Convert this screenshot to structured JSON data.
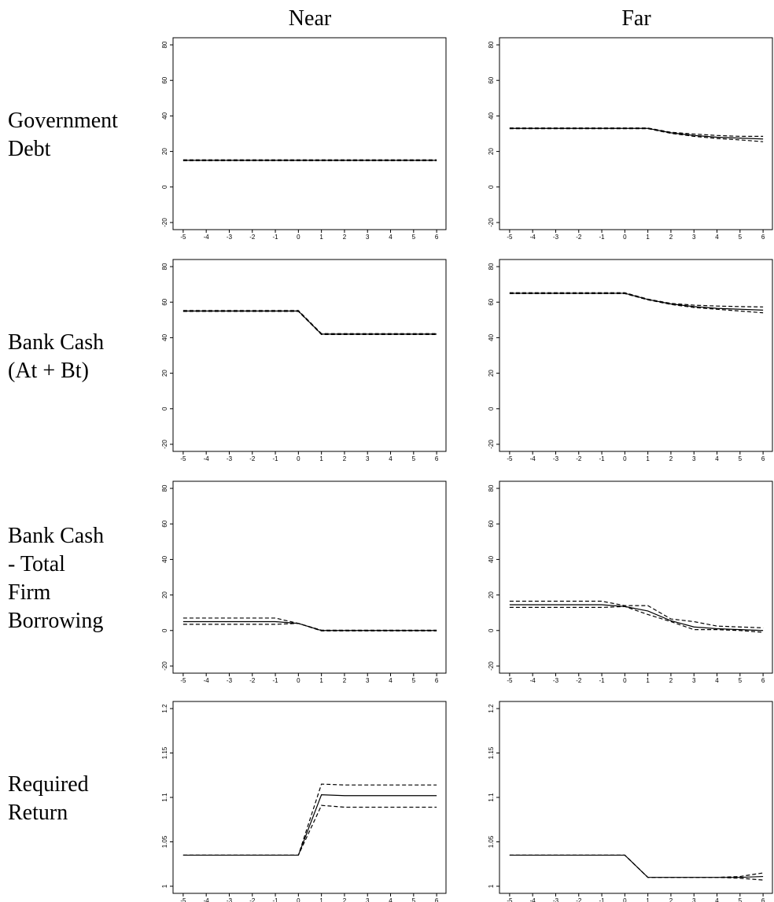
{
  "columns": [
    "Near",
    "Far"
  ],
  "rows": [
    [
      "Government",
      "Debt"
    ],
    [
      "Bank Cash",
      "(At + Bt)"
    ],
    [
      "Bank Cash",
      "- Total",
      "Firm",
      "Borrowing"
    ],
    [
      "Required",
      "Return"
    ]
  ],
  "chart_data": [
    {
      "type": "line",
      "x": [
        -5,
        -4,
        -3,
        -2,
        -1,
        0,
        1,
        2,
        3,
        4,
        5,
        6
      ],
      "xlim": [
        -5.44,
        6.44
      ],
      "xticks": [
        -5,
        -4,
        -3,
        -2,
        -1,
        0,
        1,
        2,
        3,
        4,
        5,
        6
      ],
      "ylim": [
        -24,
        84
      ],
      "yticks": [
        -20,
        0,
        20,
        40,
        60,
        80
      ],
      "series": [
        {
          "color": "#000000",
          "style": "solid",
          "values": [
            15,
            15,
            15,
            15,
            15,
            15,
            15,
            15,
            15,
            15,
            15,
            15
          ]
        },
        {
          "color": "#000000",
          "style": "dashed",
          "values": [
            15.3,
            15.3,
            15.3,
            15.3,
            15.3,
            15.3,
            15.3,
            15.3,
            15.3,
            15.3,
            15.3,
            15.3
          ]
        },
        {
          "color": "#000000",
          "style": "dashed",
          "values": [
            14.8,
            14.8,
            14.8,
            14.8,
            14.8,
            14.8,
            14.8,
            14.8,
            14.8,
            14.8,
            14.8,
            14.8
          ]
        }
      ]
    },
    {
      "type": "line",
      "x": [
        -5,
        -4,
        -3,
        -2,
        -1,
        0,
        1,
        2,
        3,
        4,
        5,
        6
      ],
      "xlim": [
        -5.44,
        6.44
      ],
      "xticks": [
        -5,
        -4,
        -3,
        -2,
        -1,
        0,
        1,
        2,
        3,
        4,
        5,
        6
      ],
      "ylim": [
        -24,
        84
      ],
      "yticks": [
        -20,
        0,
        20,
        40,
        60,
        80
      ],
      "series": [
        {
          "color": "#000000",
          "style": "solid",
          "values": [
            33,
            33,
            33,
            33,
            33,
            33,
            33,
            30.5,
            29,
            28,
            27.5,
            27
          ]
        },
        {
          "color": "#000000",
          "style": "dashed",
          "values": [
            33.2,
            33.2,
            33.2,
            33.2,
            33.2,
            33.2,
            33.2,
            30.8,
            29.8,
            29,
            28.5,
            28.5
          ]
        },
        {
          "color": "#000000",
          "style": "dashed",
          "values": [
            32.8,
            32.8,
            32.8,
            32.8,
            32.8,
            32.8,
            32.8,
            30.2,
            28.5,
            27.3,
            26.5,
            25.5
          ]
        }
      ]
    },
    {
      "type": "line",
      "x": [
        -5,
        -4,
        -3,
        -2,
        -1,
        0,
        1,
        2,
        3,
        4,
        5,
        6
      ],
      "xlim": [
        -5.44,
        6.44
      ],
      "xticks": [
        -5,
        -4,
        -3,
        -2,
        -1,
        0,
        1,
        2,
        3,
        4,
        5,
        6
      ],
      "ylim": [
        -24,
        84
      ],
      "yticks": [
        -20,
        0,
        20,
        40,
        60,
        80
      ],
      "series": [
        {
          "color": "#000000",
          "style": "solid",
          "values": [
            55,
            55,
            55,
            55,
            55,
            55,
            42,
            42,
            42,
            42,
            42,
            42
          ]
        },
        {
          "color": "#000000",
          "style": "dashed",
          "values": [
            55.3,
            55.3,
            55.3,
            55.3,
            55.3,
            55.3,
            42.3,
            42.3,
            42.3,
            42.3,
            42.3,
            42.3
          ]
        },
        {
          "color": "#000000",
          "style": "dashed",
          "values": [
            54.8,
            54.8,
            54.8,
            54.8,
            54.8,
            54.8,
            41.8,
            41.8,
            41.8,
            41.8,
            41.8,
            41.8
          ]
        }
      ]
    },
    {
      "type": "line",
      "x": [
        -5,
        -4,
        -3,
        -2,
        -1,
        0,
        1,
        2,
        3,
        4,
        5,
        6
      ],
      "xlim": [
        -5.44,
        6.44
      ],
      "xticks": [
        -5,
        -4,
        -3,
        -2,
        -1,
        0,
        1,
        2,
        3,
        4,
        5,
        6
      ],
      "ylim": [
        -24,
        84
      ],
      "yticks": [
        -20,
        0,
        20,
        40,
        60,
        80
      ],
      "series": [
        {
          "color": "#000000",
          "style": "solid",
          "values": [
            65,
            65,
            65,
            65,
            65,
            65,
            61.5,
            59,
            57.5,
            56.5,
            56,
            55.5
          ]
        },
        {
          "color": "#000000",
          "style": "dashed",
          "values": [
            65.3,
            65.3,
            65.3,
            65.3,
            65.3,
            65.3,
            61.7,
            59.3,
            58.3,
            57.8,
            57.5,
            57.3
          ]
        },
        {
          "color": "#000000",
          "style": "dashed",
          "values": [
            64.8,
            64.8,
            64.8,
            64.8,
            64.8,
            64.8,
            61.3,
            58.7,
            57,
            56,
            55,
            54
          ]
        }
      ]
    },
    {
      "type": "line",
      "x": [
        -5,
        -4,
        -3,
        -2,
        -1,
        0,
        1,
        2,
        3,
        4,
        5,
        6
      ],
      "xlim": [
        -5.44,
        6.44
      ],
      "xticks": [
        -5,
        -4,
        -3,
        -2,
        -1,
        0,
        1,
        2,
        3,
        4,
        5,
        6
      ],
      "ylim": [
        -24,
        84
      ],
      "yticks": [
        -20,
        0,
        20,
        40,
        60,
        80
      ],
      "series": [
        {
          "color": "#000000",
          "style": "solid",
          "values": [
            5,
            5,
            5,
            5,
            5,
            4,
            0,
            0,
            0,
            0,
            0,
            0
          ]
        },
        {
          "color": "#000000",
          "style": "dashed",
          "values": [
            7,
            7,
            7,
            7,
            7,
            4,
            0.2,
            0.2,
            0.2,
            0.2,
            0.2,
            0.2
          ]
        },
        {
          "color": "#000000",
          "style": "dashed",
          "values": [
            3.5,
            3.5,
            3.5,
            3.5,
            3.5,
            4,
            -0.2,
            -0.2,
            -0.2,
            -0.2,
            -0.2,
            -0.2
          ]
        }
      ]
    },
    {
      "type": "line",
      "x": [
        -5,
        -4,
        -3,
        -2,
        -1,
        0,
        1,
        2,
        3,
        4,
        5,
        6
      ],
      "xlim": [
        -5.44,
        6.44
      ],
      "xticks": [
        -5,
        -4,
        -3,
        -2,
        -1,
        0,
        1,
        2,
        3,
        4,
        5,
        6
      ],
      "ylim": [
        -24,
        84
      ],
      "yticks": [
        -20,
        0,
        20,
        40,
        60,
        80
      ],
      "series": [
        {
          "color": "#000000",
          "style": "solid",
          "values": [
            14.5,
            14.5,
            14.5,
            14.5,
            14.5,
            13.5,
            11,
            5.5,
            2,
            1,
            0.5,
            0
          ]
        },
        {
          "color": "#000000",
          "style": "dashed",
          "values": [
            16.5,
            16.5,
            16.5,
            16.5,
            16.5,
            14,
            14,
            6.5,
            5,
            2.5,
            2,
            1.5
          ]
        },
        {
          "color": "#000000",
          "style": "dashed",
          "values": [
            13,
            13,
            13,
            13,
            13,
            13.5,
            9,
            5,
            0.5,
            0.5,
            0,
            -1
          ]
        }
      ]
    },
    {
      "type": "line",
      "x": [
        -5,
        -4,
        -3,
        -2,
        -1,
        0,
        1,
        2,
        3,
        4,
        5,
        6
      ],
      "xlim": [
        -5.44,
        6.44
      ],
      "xticks": [
        -5,
        -4,
        -3,
        -2,
        -1,
        0,
        1,
        2,
        3,
        4,
        5,
        6
      ],
      "ylim": [
        0.992,
        1.208
      ],
      "yticks": [
        1,
        1.05,
        1.1,
        1.15,
        1.2
      ],
      "series": [
        {
          "color": "#000000",
          "style": "solid",
          "values": [
            1.035,
            1.035,
            1.035,
            1.035,
            1.035,
            1.035,
            1.103,
            1.102,
            1.102,
            1.102,
            1.102,
            1.102
          ]
        },
        {
          "color": "#000000",
          "style": "dashed",
          "values": [
            1.035,
            1.035,
            1.035,
            1.035,
            1.035,
            1.035,
            1.115,
            1.114,
            1.114,
            1.114,
            1.114,
            1.114
          ]
        },
        {
          "color": "#000000",
          "style": "dashed",
          "values": [
            1.035,
            1.035,
            1.035,
            1.035,
            1.035,
            1.035,
            1.091,
            1.089,
            1.089,
            1.089,
            1.089,
            1.089
          ]
        }
      ]
    },
    {
      "type": "line",
      "x": [
        -5,
        -4,
        -3,
        -2,
        -1,
        0,
        1,
        2,
        3,
        4,
        5,
        6
      ],
      "xlim": [
        -5.44,
        6.44
      ],
      "xticks": [
        -5,
        -4,
        -3,
        -2,
        -1,
        0,
        1,
        2,
        3,
        4,
        5,
        6
      ],
      "ylim": [
        0.992,
        1.208
      ],
      "yticks": [
        1,
        1.05,
        1.1,
        1.15,
        1.2
      ],
      "series": [
        {
          "color": "#000000",
          "style": "solid",
          "values": [
            1.035,
            1.035,
            1.035,
            1.035,
            1.035,
            1.035,
            1.01,
            1.01,
            1.01,
            1.01,
            1.01,
            1.011
          ]
        },
        {
          "color": "#000000",
          "style": "dashed",
          "values": [
            1.035,
            1.035,
            1.035,
            1.035,
            1.035,
            1.035,
            1.01,
            1.01,
            1.01,
            1.01,
            1.011,
            1.015
          ]
        },
        {
          "color": "#000000",
          "style": "dashed",
          "values": [
            1.035,
            1.035,
            1.035,
            1.035,
            1.035,
            1.035,
            1.01,
            1.01,
            1.01,
            1.01,
            1.009,
            1.007
          ]
        }
      ]
    }
  ]
}
